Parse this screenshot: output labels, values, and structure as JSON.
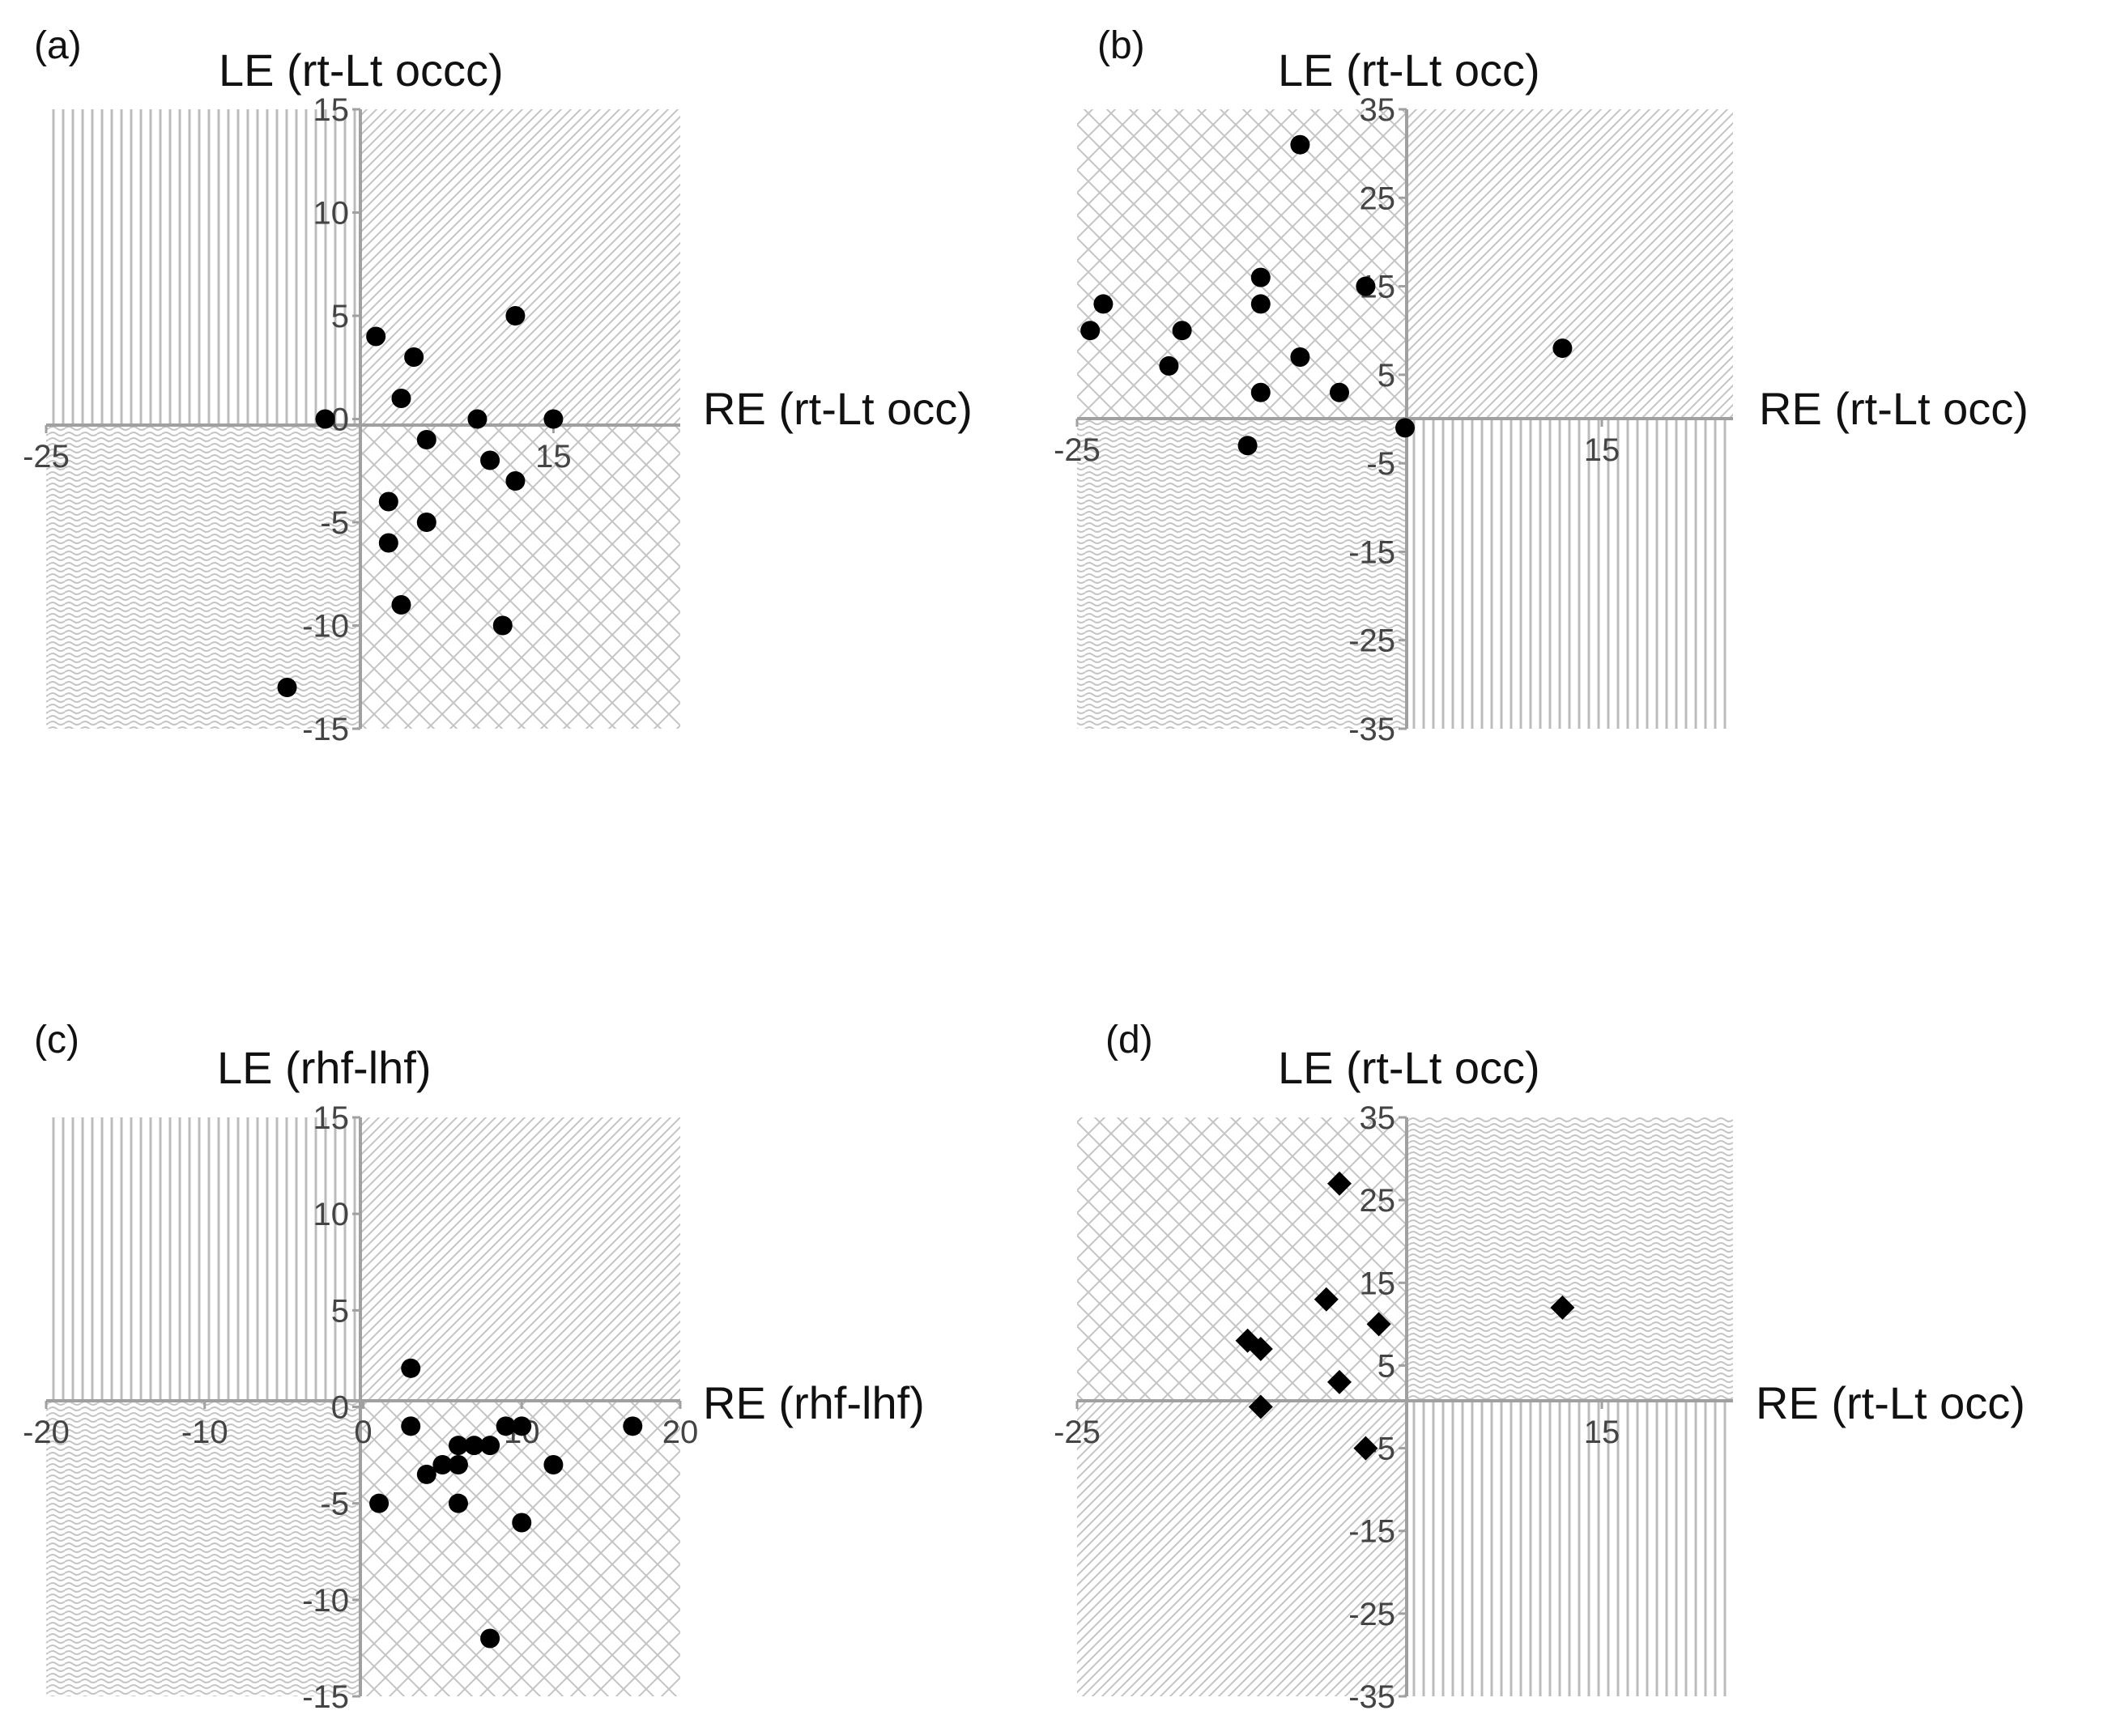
{
  "figure": {
    "colors": {
      "axis": "#a0a0a0",
      "hatch": "#c4c4c4",
      "marker": "#000000",
      "text": "#333333"
    }
  },
  "chart_data": [
    {
      "type": "scatter",
      "panel_label": "(a)",
      "ylabel": "LE (rt-Lt occc)",
      "xlabel": "RE (rt-Lt occ)",
      "xlim": [
        -25,
        25
      ],
      "ylim": [
        -15,
        15
      ],
      "x_ticks": [
        -25,
        15
      ],
      "y_ticks": [
        15,
        10,
        5,
        0,
        -5,
        -10,
        -15
      ],
      "quadrant_patterns": {
        "top_left": "vertical",
        "top_right": "diagonal",
        "bottom_left": "wave",
        "bottom_right": "crosshatch"
      },
      "marker": "circle",
      "points": [
        {
          "x": -3,
          "y": 0
        },
        {
          "x": 1,
          "y": 4
        },
        {
          "x": 4,
          "y": 3
        },
        {
          "x": 3,
          "y": 1
        },
        {
          "x": 5,
          "y": -1
        },
        {
          "x": 9,
          "y": 0
        },
        {
          "x": 10,
          "y": -2
        },
        {
          "x": 12,
          "y": 5
        },
        {
          "x": 12,
          "y": -3
        },
        {
          "x": 15,
          "y": 0
        },
        {
          "x": 2,
          "y": -4
        },
        {
          "x": 2,
          "y": -6
        },
        {
          "x": 5,
          "y": -5
        },
        {
          "x": 3,
          "y": -9
        },
        {
          "x": 11,
          "y": -10
        },
        {
          "x": -6,
          "y": -13
        }
      ]
    },
    {
      "type": "scatter",
      "panel_label": "(b)",
      "ylabel": "LE (rt-Lt occ)",
      "xlabel": "RE (rt-Lt occ)",
      "xlim": [
        -25,
        25
      ],
      "ylim": [
        -35,
        35
      ],
      "x_ticks": [
        -25,
        15
      ],
      "y_ticks": [
        35,
        25,
        15,
        5,
        -5,
        -15,
        -25,
        -35
      ],
      "quadrant_patterns": {
        "top_left": "crosshatch",
        "top_right": "diagonal",
        "bottom_left": "wave",
        "bottom_right": "vertical"
      },
      "marker": "circle",
      "points": [
        {
          "x": -8,
          "y": 31
        },
        {
          "x": -11,
          "y": 16
        },
        {
          "x": -11,
          "y": 13
        },
        {
          "x": -3,
          "y": 15
        },
        {
          "x": -23,
          "y": 13
        },
        {
          "x": -24,
          "y": 10
        },
        {
          "x": -17,
          "y": 10
        },
        {
          "x": -18,
          "y": 6
        },
        {
          "x": -8,
          "y": 7
        },
        {
          "x": -11,
          "y": 3
        },
        {
          "x": -5,
          "y": 3
        },
        {
          "x": -12,
          "y": -3
        },
        {
          "x": 0,
          "y": -1
        },
        {
          "x": 12,
          "y": 8
        }
      ]
    },
    {
      "type": "scatter",
      "panel_label": "(c)",
      "ylabel": "LE (rhf-lhf)",
      "xlabel": "RE (rhf-lhf)",
      "xlim": [
        -20,
        20
      ],
      "ylim": [
        -15,
        15
      ],
      "x_ticks": [
        -20,
        -10,
        0,
        10,
        20
      ],
      "y_ticks": [
        15,
        10,
        5,
        0,
        -5,
        -10,
        -15
      ],
      "quadrant_patterns": {
        "top_left": "vertical",
        "top_right": "diagonal",
        "bottom_left": "wave",
        "bottom_right": "crosshatch"
      },
      "marker": "circle",
      "points": [
        {
          "x": 3,
          "y": 2
        },
        {
          "x": 3,
          "y": -1
        },
        {
          "x": 6,
          "y": -2
        },
        {
          "x": 7,
          "y": -2
        },
        {
          "x": 8,
          "y": -2
        },
        {
          "x": 9,
          "y": -1
        },
        {
          "x": 10,
          "y": -1
        },
        {
          "x": 17,
          "y": -1
        },
        {
          "x": 5,
          "y": -3
        },
        {
          "x": 6,
          "y": -3
        },
        {
          "x": 12,
          "y": -3
        },
        {
          "x": 4,
          "y": -3.5
        },
        {
          "x": 1,
          "y": -5
        },
        {
          "x": 6,
          "y": -5
        },
        {
          "x": 10,
          "y": -6
        },
        {
          "x": 8,
          "y": -12
        }
      ]
    },
    {
      "type": "scatter",
      "panel_label": "(d)",
      "ylabel": "LE (rt-Lt occ)",
      "xlabel": "RE (rt-Lt occ)",
      "xlim": [
        -25,
        25
      ],
      "ylim": [
        -35,
        35
      ],
      "x_ticks": [
        -25,
        15
      ],
      "y_ticks": [
        35,
        25,
        15,
        5,
        -5,
        -15,
        -25,
        -35
      ],
      "quadrant_patterns": {
        "top_left": "crosshatch",
        "top_right": "wave",
        "bottom_left": "diagonal",
        "bottom_right": "vertical"
      },
      "marker": "diamond",
      "points": [
        {
          "x": -5,
          "y": 27
        },
        {
          "x": -6,
          "y": 13
        },
        {
          "x": -2,
          "y": 10
        },
        {
          "x": -12,
          "y": 8
        },
        {
          "x": -11,
          "y": 7
        },
        {
          "x": -5,
          "y": 3
        },
        {
          "x": -11,
          "y": 0
        },
        {
          "x": -3,
          "y": -5
        },
        {
          "x": 12,
          "y": 12
        }
      ]
    }
  ]
}
